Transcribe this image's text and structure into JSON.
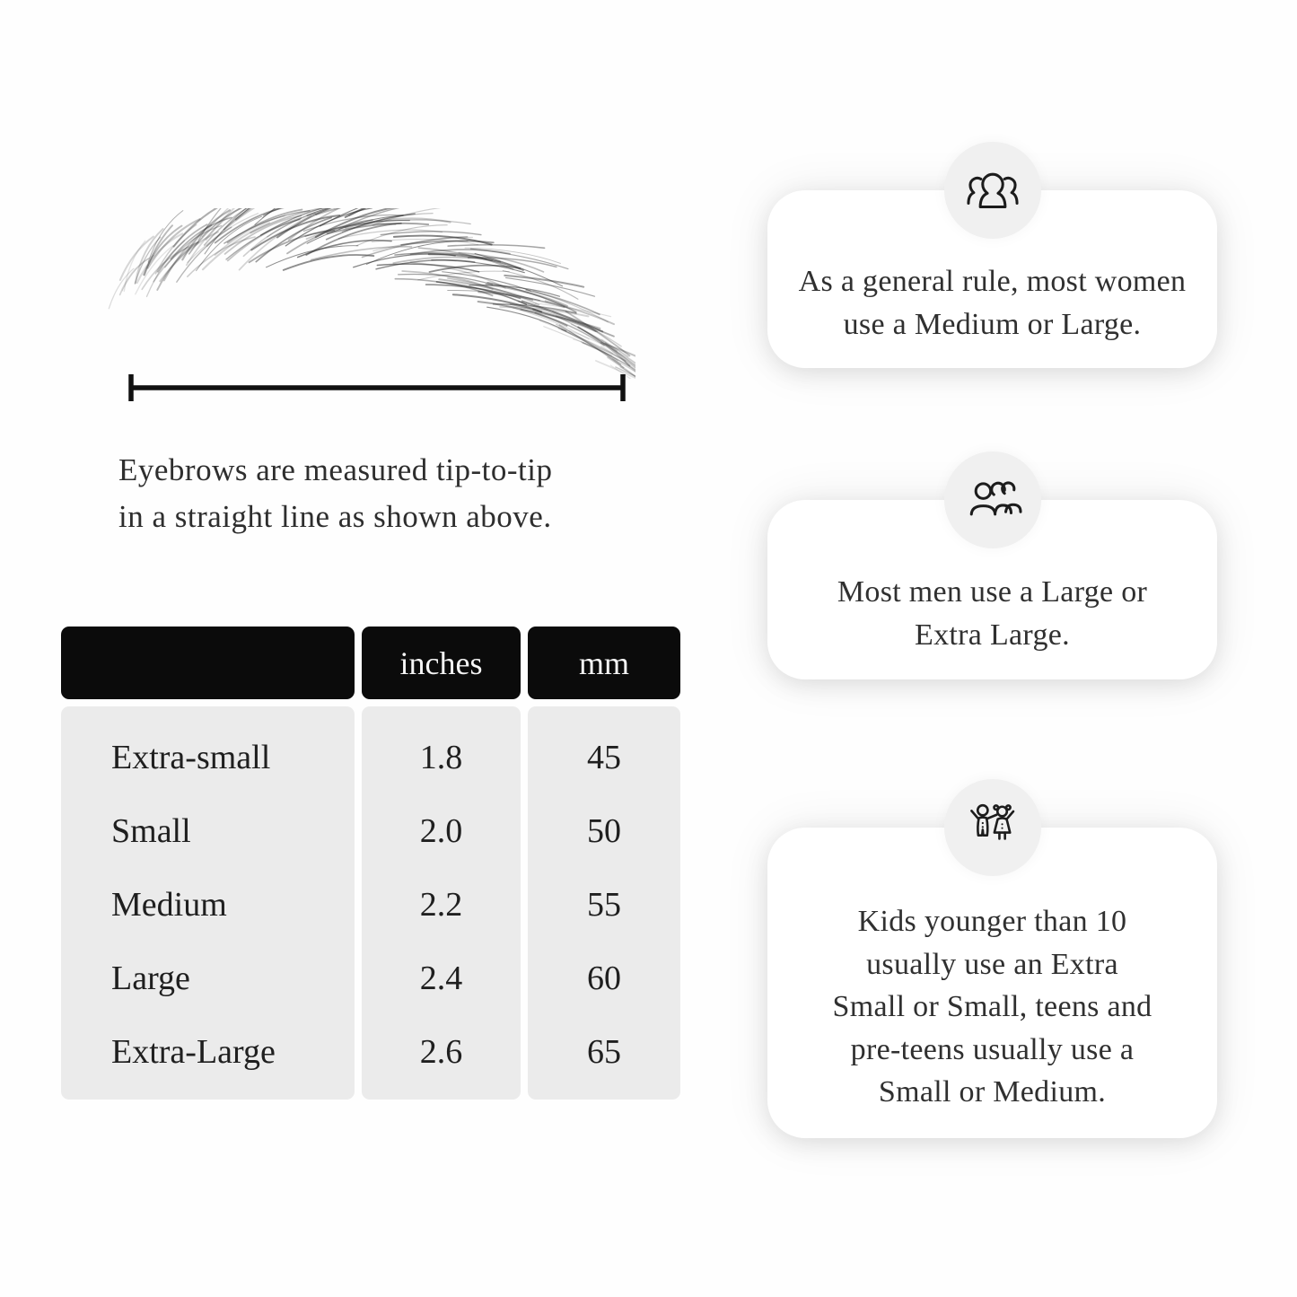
{
  "measurement": {
    "caption_line1": "Eyebrows are measured tip-to-tip",
    "caption_line2": "in a straight line as shown above."
  },
  "size_table": {
    "headers": {
      "size": "",
      "inches": "inches",
      "mm": "mm"
    },
    "rows": [
      {
        "size": "Extra-small",
        "inches": "1.8",
        "mm": "45"
      },
      {
        "size": "Small",
        "inches": "2.0",
        "mm": "50"
      },
      {
        "size": "Medium",
        "inches": "2.2",
        "mm": "55"
      },
      {
        "size": "Large",
        "inches": "2.4",
        "mm": "60"
      },
      {
        "size": "Extra-Large",
        "inches": "2.6",
        "mm": "65"
      }
    ]
  },
  "cards": [
    {
      "icon": "women-group-icon",
      "lines": [
        "As a general rule, most women",
        "use a Medium or Large."
      ]
    },
    {
      "icon": "men-group-icon",
      "lines": [
        "Most men use a Large or",
        "Extra Large."
      ]
    },
    {
      "icon": "kids-icon",
      "lines": [
        "Kids younger than 10",
        "usually use an Extra",
        "Small or Small, teens and",
        "pre-teens usually use a",
        "Small or Medium."
      ]
    }
  ],
  "colors": {
    "table_header_bg": "#0b0b0b",
    "table_body_bg": "#ebebeb",
    "badge_bg": "#f0f0f0",
    "card_bg": "#ffffff",
    "text": "#2e2e2e"
  }
}
